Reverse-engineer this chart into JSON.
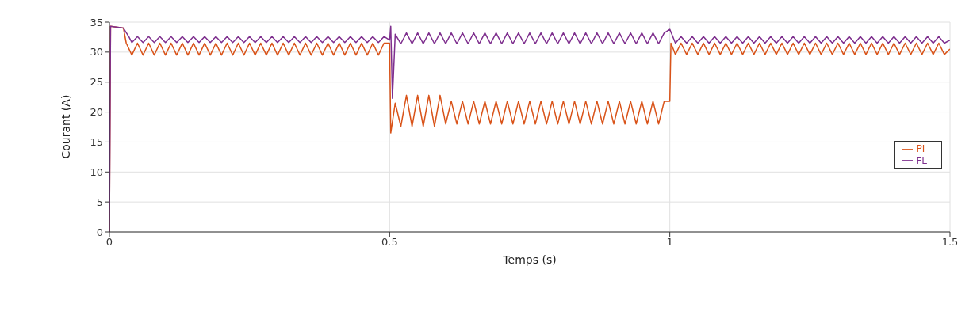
{
  "chart_data": {
    "type": "line",
    "xlabel": "Temps (s)",
    "ylabel": "Courant (A)",
    "xlim": [
      0,
      1.5
    ],
    "xticks": [
      0,
      0.5,
      1,
      1.5
    ],
    "ylim": [
      0,
      35
    ],
    "yticks": [
      0,
      5,
      10,
      15,
      20,
      25,
      30,
      35
    ],
    "grid": true,
    "legend": "right",
    "marker": "none",
    "line_style": "solid",
    "series": [
      {
        "name": "PI",
        "color": "#d95319",
        "x": [
          0,
          0.002,
          0.025,
          0.03,
          0.04,
          0.05,
          0.06,
          0.07,
          0.08,
          0.09,
          0.1,
          0.11,
          0.12,
          0.13,
          0.14,
          0.15,
          0.16,
          0.17,
          0.18,
          0.19,
          0.2,
          0.21,
          0.22,
          0.23,
          0.24,
          0.25,
          0.26,
          0.27,
          0.28,
          0.29,
          0.3,
          0.31,
          0.32,
          0.33,
          0.34,
          0.35,
          0.36,
          0.37,
          0.38,
          0.39,
          0.4,
          0.41,
          0.42,
          0.43,
          0.44,
          0.45,
          0.46,
          0.47,
          0.48,
          0.49,
          0.5,
          0.502,
          0.51,
          0.52,
          0.53,
          0.54,
          0.55,
          0.56,
          0.57,
          0.58,
          0.59,
          0.6,
          0.61,
          0.62,
          0.63,
          0.64,
          0.65,
          0.66,
          0.67,
          0.68,
          0.69,
          0.7,
          0.71,
          0.72,
          0.73,
          0.74,
          0.75,
          0.76,
          0.77,
          0.78,
          0.79,
          0.8,
          0.81,
          0.82,
          0.83,
          0.84,
          0.85,
          0.86,
          0.87,
          0.88,
          0.89,
          0.9,
          0.91,
          0.92,
          0.93,
          0.94,
          0.95,
          0.96,
          0.97,
          0.98,
          0.99,
          1,
          1.002,
          1.01,
          1.02,
          1.03,
          1.04,
          1.05,
          1.06,
          1.07,
          1.08,
          1.09,
          1.1,
          1.11,
          1.12,
          1.13,
          1.14,
          1.15,
          1.16,
          1.17,
          1.18,
          1.19,
          1.2,
          1.21,
          1.22,
          1.23,
          1.24,
          1.25,
          1.26,
          1.27,
          1.28,
          1.29,
          1.3,
          1.31,
          1.32,
          1.33,
          1.34,
          1.35,
          1.36,
          1.37,
          1.38,
          1.39,
          1.4,
          1.41,
          1.42,
          1.43,
          1.44,
          1.45,
          1.46,
          1.47,
          1.48,
          1.49,
          1.5
        ],
        "values": [
          0,
          34.3,
          34,
          31.5,
          29.5,
          31.5,
          29.5,
          31.5,
          29.5,
          31.5,
          29.5,
          31.5,
          29.5,
          31.5,
          29.5,
          31.5,
          29.5,
          31.5,
          29.5,
          31.5,
          29.5,
          31.5,
          29.5,
          31.5,
          29.5,
          31.5,
          29.5,
          31.5,
          29.5,
          31.5,
          29.5,
          31.5,
          29.5,
          31.5,
          29.5,
          31.5,
          29.5,
          31.5,
          29.5,
          31.5,
          29.5,
          31.5,
          29.5,
          31.5,
          29.5,
          31.5,
          29.5,
          31.5,
          29.5,
          31.5,
          31.5,
          16.5,
          21.5,
          17.6,
          22.8,
          17.6,
          22.8,
          17.6,
          22.8,
          17.6,
          22.8,
          18,
          21.8,
          18,
          21.8,
          18,
          21.8,
          18,
          21.8,
          18,
          21.8,
          18,
          21.8,
          18,
          21.8,
          18,
          21.8,
          18,
          21.8,
          18,
          21.8,
          18,
          21.8,
          18,
          21.8,
          18,
          21.8,
          18,
          21.8,
          18,
          21.8,
          18,
          21.8,
          18,
          21.8,
          18,
          21.8,
          18,
          21.8,
          18,
          21.8,
          21.8,
          31.5,
          29.6,
          31.5,
          29.6,
          31.5,
          29.6,
          31.5,
          29.6,
          31.5,
          29.6,
          31.5,
          29.6,
          31.5,
          29.6,
          31.5,
          29.6,
          31.5,
          29.6,
          31.5,
          29.6,
          31.5,
          29.6,
          31.5,
          29.6,
          31.5,
          29.6,
          31.5,
          29.6,
          31.5,
          29.6,
          31.5,
          29.6,
          31.5,
          29.6,
          31.5,
          29.6,
          31.5,
          29.6,
          31.5,
          29.6,
          31.5,
          29.6,
          31.5,
          29.6,
          31.5,
          29.6,
          31.5,
          29.6,
          31.5,
          29.6,
          30.5
        ]
      },
      {
        "name": "FL",
        "color": "#7e2f8e",
        "x": [
          0,
          0.002,
          0.025,
          0.035,
          0.04,
          0.05,
          0.06,
          0.07,
          0.08,
          0.09,
          0.1,
          0.11,
          0.12,
          0.13,
          0.14,
          0.15,
          0.16,
          0.17,
          0.18,
          0.19,
          0.2,
          0.21,
          0.22,
          0.23,
          0.24,
          0.25,
          0.26,
          0.27,
          0.28,
          0.29,
          0.3,
          0.31,
          0.32,
          0.33,
          0.34,
          0.35,
          0.36,
          0.37,
          0.38,
          0.39,
          0.4,
          0.41,
          0.42,
          0.43,
          0.44,
          0.45,
          0.46,
          0.47,
          0.48,
          0.49,
          0.5,
          0.502,
          0.505,
          0.51,
          0.52,
          0.53,
          0.54,
          0.55,
          0.56,
          0.57,
          0.58,
          0.59,
          0.6,
          0.61,
          0.62,
          0.63,
          0.64,
          0.65,
          0.66,
          0.67,
          0.68,
          0.69,
          0.7,
          0.71,
          0.72,
          0.73,
          0.74,
          0.75,
          0.76,
          0.77,
          0.78,
          0.79,
          0.8,
          0.81,
          0.82,
          0.83,
          0.84,
          0.85,
          0.86,
          0.87,
          0.88,
          0.89,
          0.9,
          0.91,
          0.92,
          0.93,
          0.94,
          0.95,
          0.96,
          0.97,
          0.98,
          0.99,
          1,
          1.01,
          1.02,
          1.03,
          1.04,
          1.05,
          1.06,
          1.07,
          1.08,
          1.09,
          1.1,
          1.11,
          1.12,
          1.13,
          1.14,
          1.15,
          1.16,
          1.17,
          1.18,
          1.19,
          1.2,
          1.21,
          1.22,
          1.23,
          1.24,
          1.25,
          1.26,
          1.27,
          1.28,
          1.29,
          1.3,
          1.31,
          1.32,
          1.33,
          1.34,
          1.35,
          1.36,
          1.37,
          1.38,
          1.39,
          1.4,
          1.41,
          1.42,
          1.43,
          1.44,
          1.45,
          1.46,
          1.47,
          1.48,
          1.49,
          1.5
        ],
        "values": [
          0,
          34.3,
          34,
          32.5,
          31.6,
          32.6,
          31.6,
          32.6,
          31.6,
          32.6,
          31.6,
          32.6,
          31.6,
          32.6,
          31.6,
          32.6,
          31.6,
          32.6,
          31.6,
          32.6,
          31.6,
          32.6,
          31.6,
          32.6,
          31.6,
          32.6,
          31.6,
          32.6,
          31.6,
          32.6,
          31.6,
          32.6,
          31.6,
          32.6,
          31.6,
          32.6,
          31.6,
          32.6,
          31.6,
          32.6,
          31.6,
          32.6,
          31.6,
          32.6,
          31.6,
          32.6,
          31.6,
          32.6,
          31.6,
          32.6,
          32,
          34.3,
          22.3,
          33,
          31.4,
          33.2,
          31.4,
          33.2,
          31.4,
          33.2,
          31.4,
          33.2,
          31.4,
          33.2,
          31.4,
          33.2,
          31.4,
          33.2,
          31.4,
          33.2,
          31.4,
          33.2,
          31.4,
          33.2,
          31.4,
          33.2,
          31.4,
          33.2,
          31.4,
          33.2,
          31.4,
          33.2,
          31.4,
          33.2,
          31.4,
          33.2,
          31.4,
          33.2,
          31.4,
          33.2,
          31.4,
          33.2,
          31.4,
          33.2,
          31.4,
          33.2,
          31.4,
          33.2,
          31.4,
          33.2,
          31.4,
          33.2,
          33.8,
          31.5,
          32.6,
          31.5,
          32.6,
          31.5,
          32.6,
          31.5,
          32.6,
          31.5,
          32.6,
          31.5,
          32.6,
          31.5,
          32.6,
          31.5,
          32.6,
          31.5,
          32.6,
          31.5,
          32.6,
          31.5,
          32.6,
          31.5,
          32.6,
          31.5,
          32.6,
          31.5,
          32.6,
          31.5,
          32.6,
          31.5,
          32.6,
          31.5,
          32.6,
          31.5,
          32.6,
          31.5,
          32.6,
          31.5,
          32.6,
          31.5,
          32.6,
          31.5,
          32.6,
          31.5,
          32.6,
          31.5,
          32.6,
          31.5,
          32
        ]
      }
    ]
  }
}
